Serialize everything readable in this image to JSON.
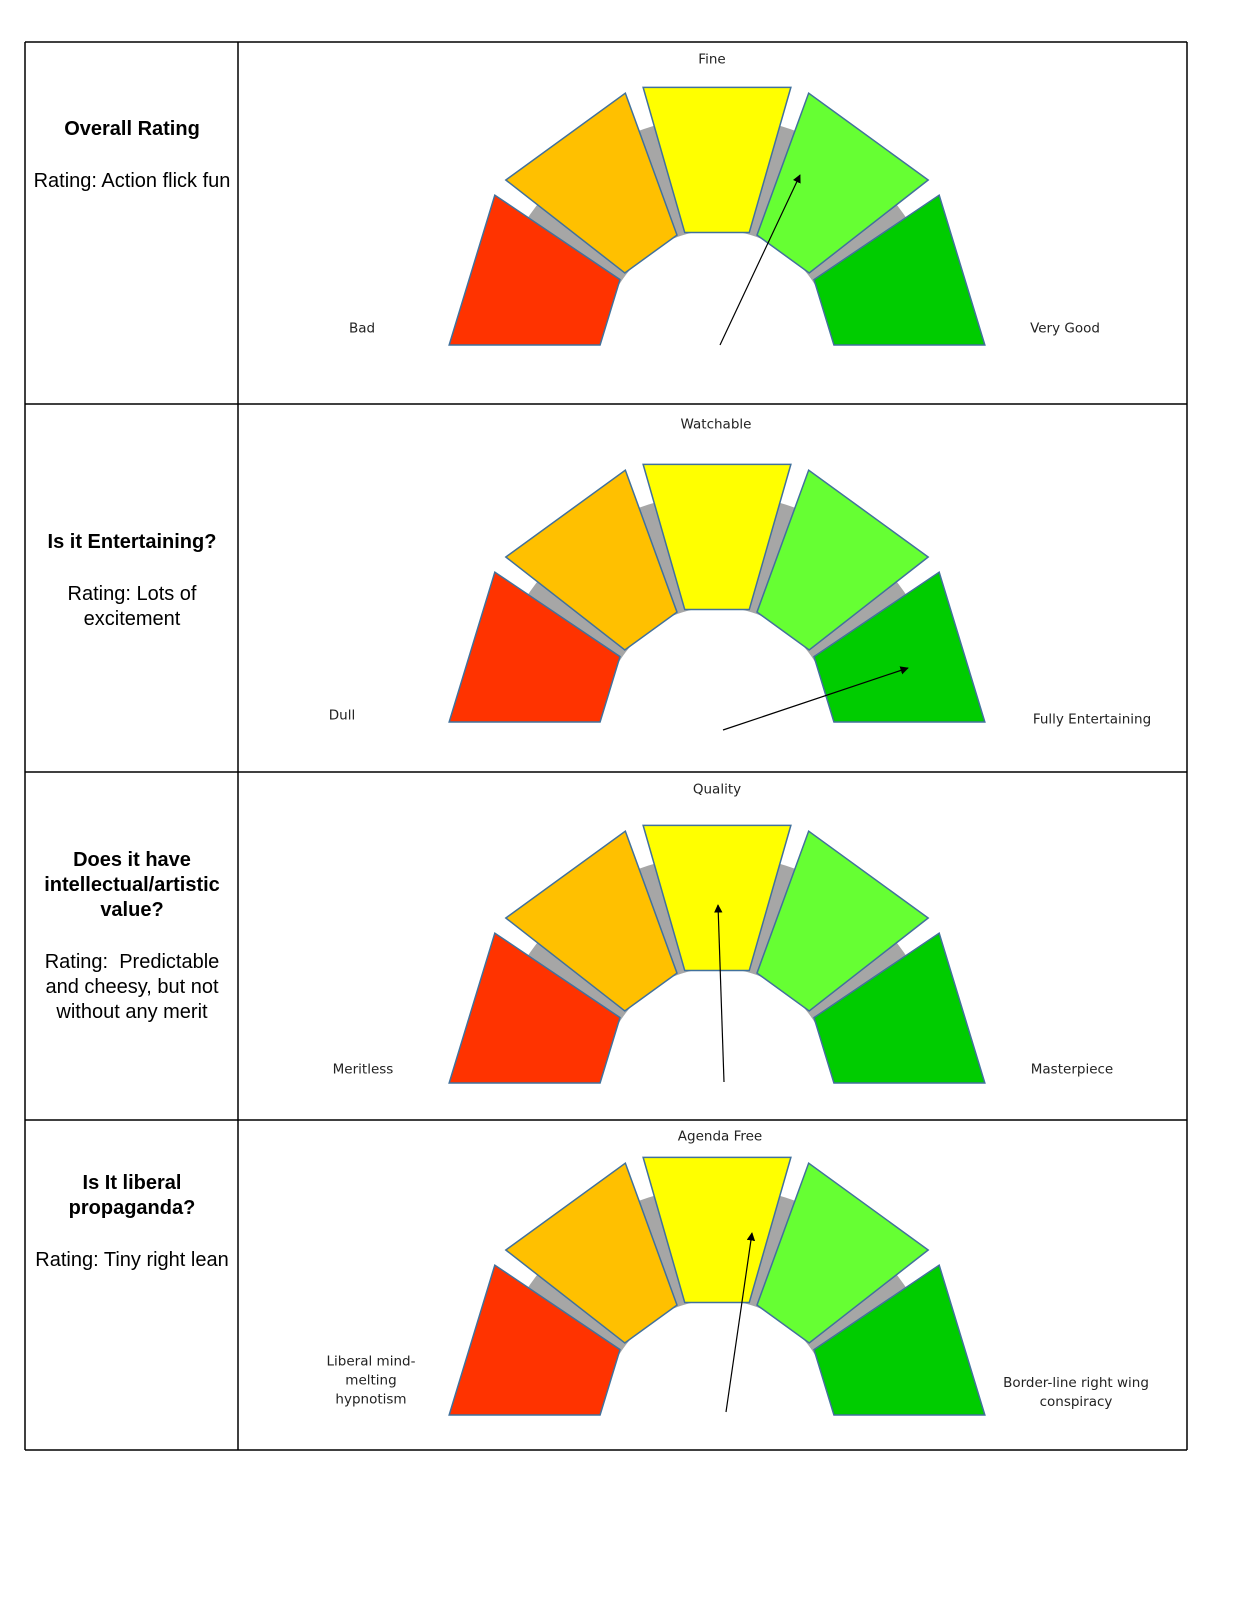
{
  "rows": [
    {
      "title": "Overall Rating",
      "rating": "Rating: Action flick fun",
      "gauge": {
        "left": "Bad",
        "top": "Fine",
        "right": "Very Good"
      }
    },
    {
      "title": "Is it Entertaining?",
      "rating": "Rating: Lots of excitement",
      "gauge": {
        "left": "Dull",
        "top": "Watchable",
        "right": "Fully Entertaining"
      }
    },
    {
      "title": "Does it have intellectual/artistic value?",
      "rating": "Rating:  Predictable and cheesy, but not without any merit",
      "gauge": {
        "left": "Meritless",
        "top": "Quality",
        "right": "Masterpiece"
      }
    },
    {
      "title": "Is It liberal propaganda?",
      "rating": "Rating: Tiny right lean",
      "gauge": {
        "left": "Liberal mind-melting hypnotism",
        "top": "Agenda Free",
        "right": "Border-line right wing conspiracy"
      }
    }
  ]
}
